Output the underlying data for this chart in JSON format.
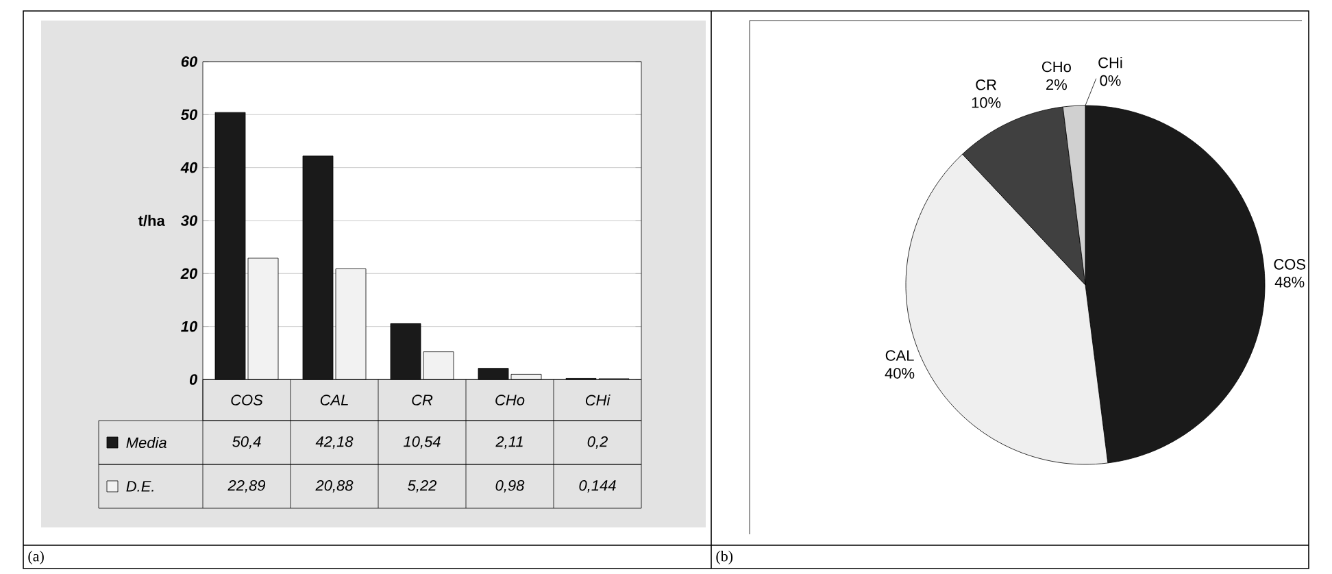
{
  "chart_data": [
    {
      "type": "bar",
      "categories": [
        "COS",
        "CAL",
        "CR",
        "CHo",
        "CHi"
      ],
      "ylabel": "t/ha",
      "ylim": [
        0,
        60
      ],
      "yticks": [
        0,
        10,
        20,
        30,
        40,
        50,
        60
      ],
      "grid": "y",
      "legend": "bottom",
      "series": [
        {
          "name": "Media",
          "color": "#1a1a1a",
          "values": [
            50.4,
            42.18,
            10.54,
            2.11,
            0.2
          ],
          "value_labels": [
            "50,4",
            "42,18",
            "10,54",
            "2,11",
            "0,2"
          ]
        },
        {
          "name": "D.E.",
          "color": "#f2f2f2",
          "values": [
            22.89,
            20.88,
            5.22,
            0.98,
            0.144
          ],
          "value_labels": [
            "22,89",
            "20,88",
            "5,22",
            "0,98",
            "0,144"
          ]
        }
      ],
      "annotations": [
        "(a)"
      ]
    },
    {
      "type": "pie",
      "categories": [
        "COS",
        "CAL",
        "CR",
        "CHo",
        "CHi"
      ],
      "values": [
        48,
        40,
        10,
        2,
        0
      ],
      "colors": [
        "#1a1a1a",
        "#efefef",
        "#404040",
        "#d0d0d0",
        "#808080"
      ],
      "value_labels": [
        "48%",
        "40%",
        "10%",
        "2%",
        "0%"
      ],
      "annotations": [
        "(b)"
      ]
    }
  ]
}
